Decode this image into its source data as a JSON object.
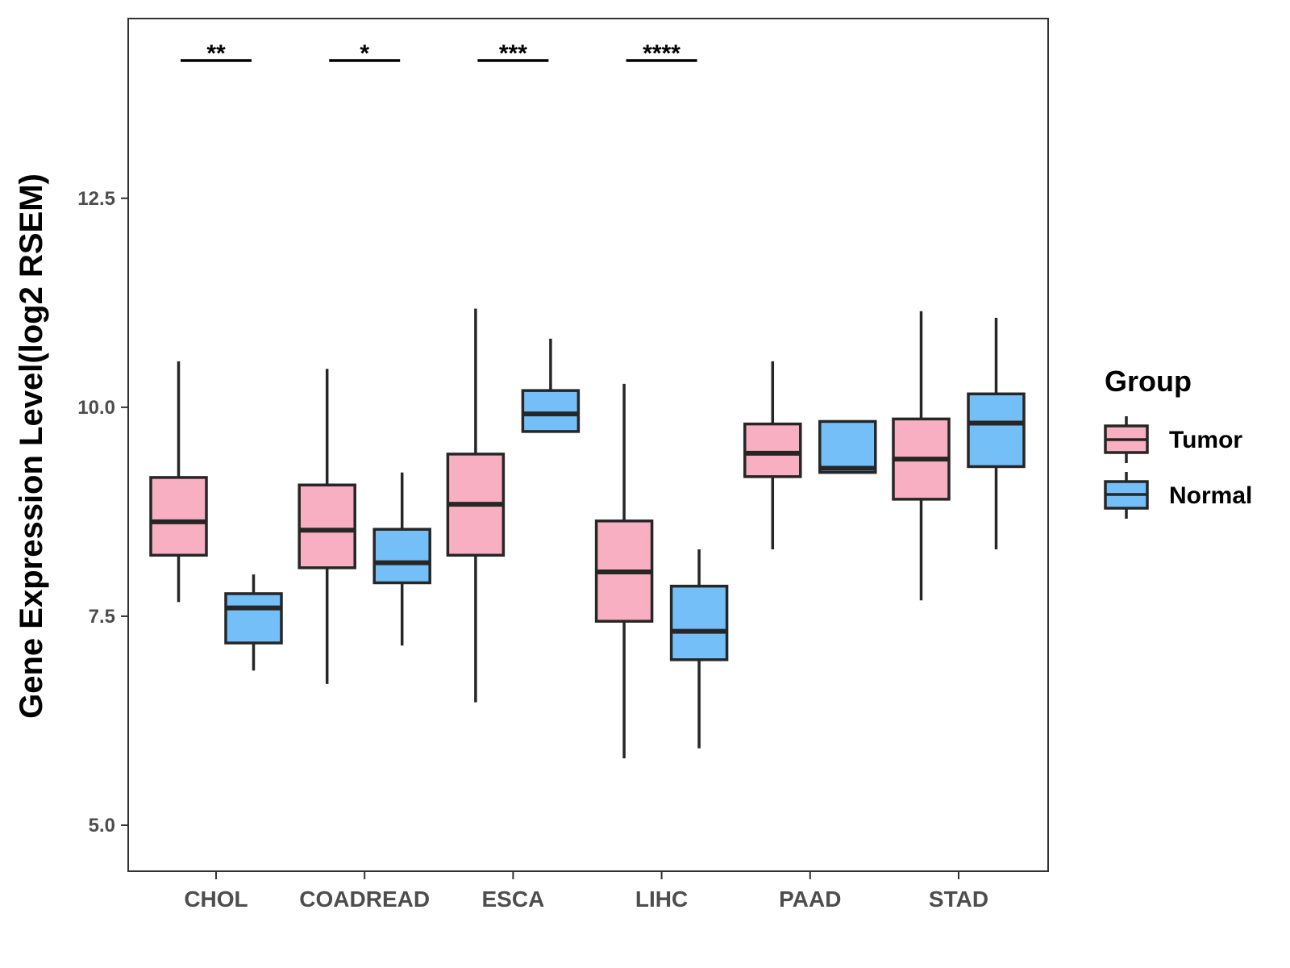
{
  "chart_data": {
    "type": "boxplot",
    "title": "",
    "xlabel": "",
    "ylabel": "Gene Expression Level(log2 RSEM)",
    "ylim": [
      4.45,
      14.65
    ],
    "yticks": [
      5.0,
      7.5,
      10.0,
      12.5
    ],
    "ytick_labels": [
      "5.0",
      "7.5",
      "10.0",
      "12.5"
    ],
    "grid": false,
    "legend_position": "right",
    "categories": [
      "CHOL",
      "COADREAD",
      "ESCA",
      "LIHC",
      "PAAD",
      "STAD"
    ],
    "legend": {
      "title": "Group",
      "items": [
        {
          "label": "Tumor",
          "color": "#f8afc1"
        },
        {
          "label": "Normal",
          "color": "#74bff7"
        }
      ]
    },
    "series": [
      {
        "name": "Tumor",
        "color": "#f8afc1",
        "boxes": [
          {
            "category": "CHOL",
            "min": 7.67,
            "q1": 8.23,
            "median": 8.63,
            "q3": 9.16,
            "max": 10.55
          },
          {
            "category": "COADREAD",
            "min": 6.69,
            "q1": 8.08,
            "median": 8.53,
            "q3": 9.07,
            "max": 10.46
          },
          {
            "category": "ESCA",
            "min": 6.47,
            "q1": 8.23,
            "median": 8.84,
            "q3": 9.44,
            "max": 11.18
          },
          {
            "category": "LIHC",
            "min": 5.8,
            "q1": 7.44,
            "median": 8.03,
            "q3": 8.64,
            "max": 10.28
          },
          {
            "category": "PAAD",
            "min": 8.3,
            "q1": 9.17,
            "median": 9.45,
            "q3": 9.8,
            "max": 10.55
          },
          {
            "category": "STAD",
            "min": 7.69,
            "q1": 8.9,
            "median": 9.38,
            "q3": 9.86,
            "max": 11.15
          }
        ]
      },
      {
        "name": "Normal",
        "color": "#74bff7",
        "boxes": [
          {
            "category": "CHOL",
            "min": 6.85,
            "q1": 7.18,
            "median": 7.6,
            "q3": 7.77,
            "max": 8.0
          },
          {
            "category": "COADREAD",
            "min": 7.15,
            "q1": 7.9,
            "median": 8.14,
            "q3": 8.54,
            "max": 9.22
          },
          {
            "category": "ESCA",
            "min": 9.7,
            "q1": 9.71,
            "median": 9.92,
            "q3": 10.2,
            "max": 10.82
          },
          {
            "category": "LIHC",
            "min": 5.92,
            "q1": 6.98,
            "median": 7.32,
            "q3": 7.86,
            "max": 8.3
          },
          {
            "category": "PAAD",
            "min": 9.22,
            "q1": 9.22,
            "median": 9.27,
            "q3": 9.83,
            "max": 9.83
          },
          {
            "category": "STAD",
            "min": 8.3,
            "q1": 9.29,
            "median": 9.81,
            "q3": 10.16,
            "max": 11.07
          }
        ]
      }
    ],
    "significance": [
      {
        "category": "CHOL",
        "label": "**"
      },
      {
        "category": "COADREAD",
        "label": "*"
      },
      {
        "category": "ESCA",
        "label": "***"
      },
      {
        "category": "LIHC",
        "label": "****"
      }
    ]
  }
}
